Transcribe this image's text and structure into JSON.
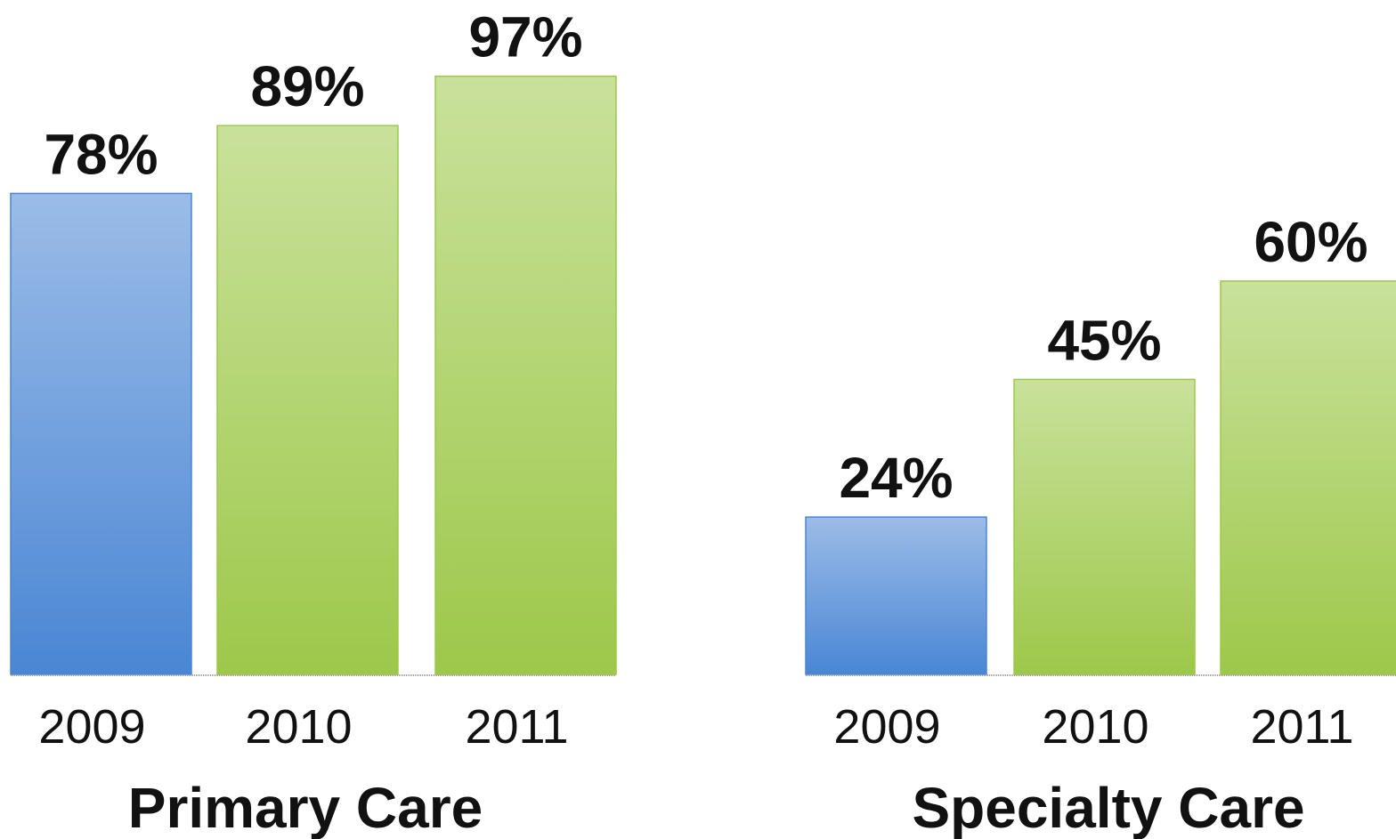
{
  "chart_data": [
    {
      "type": "bar",
      "title": "Primary Care",
      "categories": [
        "2009",
        "2010",
        "2011"
      ],
      "values": [
        78,
        89,
        97
      ],
      "value_labels": [
        "78%",
        "89%",
        "97%"
      ],
      "colors": [
        "#4a86d4",
        "#9dc84a",
        "#9dc84a"
      ],
      "ylim": [
        0,
        101
      ]
    },
    {
      "type": "bar",
      "title": "Specialty Care",
      "categories": [
        "2009",
        "2010",
        "2011"
      ],
      "values": [
        24,
        45,
        60
      ],
      "value_labels": [
        "24%",
        "45%",
        "60%"
      ],
      "colors": [
        "#4a86d4",
        "#9dc84a",
        "#9dc84a"
      ],
      "ylim": [
        0,
        95
      ]
    }
  ]
}
